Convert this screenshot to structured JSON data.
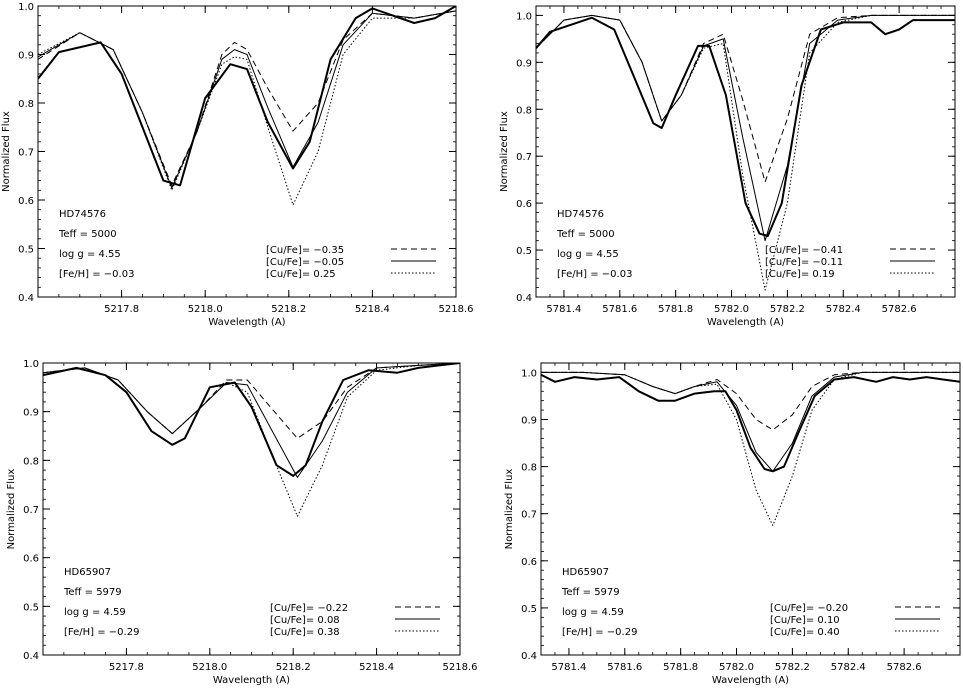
{
  "chart_data": [
    {
      "type": "line",
      "xlabel": "Wavelength (A)",
      "ylabel": "Normalized Flux",
      "xlim": [
        5217.6,
        5218.6
      ],
      "ylim": [
        0.4,
        1.0
      ],
      "xticks": [
        5217.8,
        5218.0,
        5218.2,
        5218.4,
        5218.6
      ],
      "xtick_labels": [
        "5217.8",
        "5218.0",
        "5218.2",
        "5218.4",
        "5218.6"
      ],
      "yticks": [
        0.4,
        0.5,
        0.6,
        0.7,
        0.8,
        0.9,
        1.0
      ],
      "ytick_labels": [
        "0.4",
        "0.5",
        "0.6",
        "0.7",
        "0.8",
        "0.9",
        "1.0"
      ],
      "annotations": [
        "HD74576",
        "Teff = 5000",
        "log g = 4.55",
        "[Fe/H] = −0.03"
      ],
      "legend": [
        "[Cu/Fe]= −0.35",
        "[Cu/Fe]= −0.05",
        "[Cu/Fe]=  0.25"
      ],
      "legend_placement": "bottom-right",
      "series": [
        {
          "style": "dashed",
          "x": [
            5217.6,
            5217.7,
            5217.78,
            5217.85,
            5217.92,
            5217.98,
            5218.04,
            5218.07,
            5218.1,
            5218.15,
            5218.21,
            5218.27,
            5218.33,
            5218.4,
            5218.5,
            5218.6
          ],
          "y": [
            0.89,
            0.945,
            0.91,
            0.78,
            0.63,
            0.74,
            0.9,
            0.925,
            0.91,
            0.83,
            0.742,
            0.8,
            0.93,
            0.985,
            0.975,
            0.99
          ]
        },
        {
          "style": "solid",
          "x": [
            5217.6,
            5217.7,
            5217.78,
            5217.85,
            5217.92,
            5217.98,
            5218.04,
            5218.07,
            5218.1,
            5218.15,
            5218.21,
            5218.27,
            5218.33,
            5218.4,
            5218.5,
            5218.6
          ],
          "y": [
            0.895,
            0.945,
            0.91,
            0.78,
            0.625,
            0.74,
            0.89,
            0.91,
            0.9,
            0.79,
            0.668,
            0.76,
            0.92,
            0.985,
            0.975,
            0.99
          ]
        },
        {
          "style": "dotted",
          "x": [
            5217.6,
            5217.7,
            5217.78,
            5217.85,
            5217.92,
            5217.98,
            5218.04,
            5218.07,
            5218.1,
            5218.15,
            5218.21,
            5218.27,
            5218.33,
            5218.4,
            5218.5,
            5218.6
          ],
          "y": [
            0.9,
            0.945,
            0.91,
            0.78,
            0.62,
            0.74,
            0.88,
            0.895,
            0.89,
            0.75,
            0.59,
            0.7,
            0.9,
            0.975,
            0.975,
            0.99
          ]
        },
        {
          "style": "observed",
          "x": [
            5217.6,
            5217.65,
            5217.75,
            5217.8,
            5217.85,
            5217.9,
            5217.94,
            5218.0,
            5218.06,
            5218.1,
            5218.15,
            5218.21,
            5218.25,
            5218.3,
            5218.36,
            5218.4,
            5218.45,
            5218.5,
            5218.55,
            5218.6
          ],
          "y": [
            0.85,
            0.905,
            0.925,
            0.86,
            0.75,
            0.64,
            0.63,
            0.81,
            0.88,
            0.87,
            0.76,
            0.665,
            0.72,
            0.89,
            0.975,
            0.995,
            0.98,
            0.965,
            0.975,
            1.0
          ]
        }
      ]
    },
    {
      "type": "line",
      "xlabel": "Wavelength (A)",
      "ylabel": "Normalized Flux",
      "xlim": [
        5781.3,
        5782.8
      ],
      "ylim": [
        0.4,
        1.02
      ],
      "xticks": [
        5781.4,
        5781.6,
        5781.8,
        5782.0,
        5782.2,
        5782.4,
        5782.6
      ],
      "xtick_labels": [
        "5781.4",
        "5781.6",
        "5781.8",
        "5782.0",
        "5782.2",
        "5782.4",
        "5782.6"
      ],
      "yticks": [
        0.4,
        0.5,
        0.6,
        0.7,
        0.8,
        0.9,
        1.0
      ],
      "ytick_labels": [
        "0.4",
        "0.5",
        "0.6",
        "0.7",
        "0.8",
        "0.9",
        "1.0"
      ],
      "annotations": [
        "HD74576",
        "Teff = 5000",
        "log g = 4.55",
        "[Fe/H] = −0.03"
      ],
      "legend": [
        "[Cu/Fe]= −0.41",
        "[Cu/Fe]= −0.11",
        "[Cu/Fe]=  0.19"
      ],
      "legend_placement": "bottom-right",
      "series": [
        {
          "style": "dashed",
          "x": [
            5781.3,
            5781.4,
            5781.5,
            5781.6,
            5781.68,
            5781.75,
            5781.82,
            5781.9,
            5781.97,
            5782.04,
            5782.12,
            5782.2,
            5782.28,
            5782.38,
            5782.5,
            5782.8
          ],
          "y": [
            0.93,
            0.99,
            1.0,
            0.99,
            0.9,
            0.775,
            0.83,
            0.94,
            0.96,
            0.82,
            0.645,
            0.78,
            0.96,
            0.995,
            1.0,
            1.0
          ]
        },
        {
          "style": "solid",
          "x": [
            5781.3,
            5781.4,
            5781.5,
            5781.6,
            5781.68,
            5781.75,
            5781.82,
            5781.9,
            5781.97,
            5782.04,
            5782.12,
            5782.2,
            5782.28,
            5782.38,
            5782.5,
            5782.8
          ],
          "y": [
            0.93,
            0.99,
            1.0,
            0.99,
            0.9,
            0.775,
            0.83,
            0.935,
            0.95,
            0.74,
            0.52,
            0.68,
            0.94,
            0.99,
            1.0,
            1.0
          ]
        },
        {
          "style": "dotted",
          "x": [
            5781.3,
            5781.4,
            5781.5,
            5781.6,
            5781.68,
            5781.75,
            5781.82,
            5781.9,
            5781.97,
            5782.04,
            5782.12,
            5782.2,
            5782.28,
            5782.38,
            5782.5,
            5782.8
          ],
          "y": [
            0.93,
            0.99,
            1.0,
            0.99,
            0.9,
            0.775,
            0.83,
            0.93,
            0.94,
            0.66,
            0.415,
            0.6,
            0.92,
            0.985,
            1.0,
            1.0
          ]
        },
        {
          "style": "observed",
          "x": [
            5781.3,
            5781.35,
            5781.45,
            5781.5,
            5781.58,
            5781.65,
            5781.72,
            5781.75,
            5781.8,
            5781.88,
            5781.92,
            5781.98,
            5782.05,
            5782.1,
            5782.13,
            5782.18,
            5782.25,
            5782.32,
            5782.4,
            5782.5,
            5782.55,
            5782.6,
            5782.65,
            5782.7,
            5782.8
          ],
          "y": [
            0.93,
            0.965,
            0.985,
            0.995,
            0.97,
            0.87,
            0.77,
            0.76,
            0.83,
            0.935,
            0.935,
            0.83,
            0.6,
            0.535,
            0.53,
            0.6,
            0.85,
            0.97,
            0.985,
            0.985,
            0.96,
            0.97,
            0.99,
            0.99,
            0.99
          ]
        }
      ]
    },
    {
      "type": "line",
      "xlabel": "Wavelength (A)",
      "ylabel": "Normalized Flux",
      "xlim": [
        5217.6,
        5218.6
      ],
      "ylim": [
        0.4,
        1.0
      ],
      "xticks": [
        5217.8,
        5218.0,
        5218.2,
        5218.4,
        5218.6
      ],
      "xtick_labels": [
        "5217.8",
        "5218.0",
        "5218.2",
        "5218.4",
        "5218.6"
      ],
      "yticks": [
        0.4,
        0.5,
        0.6,
        0.7,
        0.8,
        0.9,
        1.0
      ],
      "ytick_labels": [
        "0.4",
        "0.5",
        "0.6",
        "0.7",
        "0.8",
        "0.9",
        "1.0"
      ],
      "annotations": [
        "HD65907",
        "Teff = 5979",
        "log g = 4.59",
        "[Fe/H] = −0.29"
      ],
      "legend": [
        "[Cu/Fe]= −0.22",
        "[Cu/Fe]=  0.08",
        "[Cu/Fe]=  0.38"
      ],
      "legend_placement": "bottom-right",
      "series": [
        {
          "style": "dashed",
          "x": [
            5217.6,
            5217.7,
            5217.78,
            5217.85,
            5217.91,
            5217.98,
            5218.04,
            5218.09,
            5218.15,
            5218.21,
            5218.27,
            5218.33,
            5218.4,
            5218.5,
            5218.6
          ],
          "y": [
            0.98,
            0.99,
            0.965,
            0.9,
            0.855,
            0.91,
            0.965,
            0.965,
            0.905,
            0.845,
            0.88,
            0.95,
            0.99,
            0.995,
            1.0
          ]
        },
        {
          "style": "solid",
          "x": [
            5217.6,
            5217.7,
            5217.78,
            5217.85,
            5217.91,
            5217.98,
            5218.04,
            5218.09,
            5218.15,
            5218.21,
            5218.27,
            5218.33,
            5218.4,
            5218.5,
            5218.6
          ],
          "y": [
            0.98,
            0.99,
            0.965,
            0.9,
            0.855,
            0.91,
            0.96,
            0.955,
            0.86,
            0.765,
            0.84,
            0.94,
            0.99,
            0.995,
            1.0
          ]
        },
        {
          "style": "dotted",
          "x": [
            5217.6,
            5217.7,
            5217.78,
            5217.85,
            5217.91,
            5217.98,
            5218.04,
            5218.09,
            5218.15,
            5218.21,
            5218.27,
            5218.33,
            5218.4,
            5218.5,
            5218.6
          ],
          "y": [
            0.98,
            0.99,
            0.965,
            0.9,
            0.855,
            0.91,
            0.96,
            0.94,
            0.81,
            0.685,
            0.79,
            0.93,
            0.985,
            0.995,
            1.0
          ]
        },
        {
          "style": "observed",
          "x": [
            5217.6,
            5217.68,
            5217.75,
            5217.8,
            5217.86,
            5217.91,
            5217.94,
            5218.0,
            5218.06,
            5218.1,
            5218.16,
            5218.2,
            5218.23,
            5218.27,
            5218.32,
            5218.38,
            5218.45,
            5218.5,
            5218.55,
            5218.6
          ],
          "y": [
            0.975,
            0.99,
            0.975,
            0.94,
            0.86,
            0.832,
            0.845,
            0.95,
            0.96,
            0.91,
            0.79,
            0.768,
            0.79,
            0.88,
            0.965,
            0.985,
            0.98,
            0.99,
            0.995,
            1.0
          ]
        }
      ]
    },
    {
      "type": "line",
      "xlabel": "Wavelength (A)",
      "ylabel": "Normalized Flux",
      "xlim": [
        5781.3,
        5782.8
      ],
      "ylim": [
        0.4,
        1.02
      ],
      "xticks": [
        5781.4,
        5781.6,
        5781.8,
        5782.0,
        5782.2,
        5782.4,
        5782.6
      ],
      "xtick_labels": [
        "5781.4",
        "5781.6",
        "5781.8",
        "5782.0",
        "5782.2",
        "5782.4",
        "5782.6"
      ],
      "yticks": [
        0.4,
        0.5,
        0.6,
        0.7,
        0.8,
        0.9,
        1.0
      ],
      "ytick_labels": [
        "0.4",
        "0.5",
        "0.6",
        "0.7",
        "0.8",
        "0.9",
        "1.0"
      ],
      "annotations": [
        "HD65907",
        "Teff = 5979",
        "log g = 4.59",
        "[Fe/H] = −0.29"
      ],
      "legend": [
        "[Cu/Fe]= −0.20",
        "[Cu/Fe]=  0.10",
        "[Cu/Fe]=  0.40"
      ],
      "legend_placement": "bottom-right",
      "series": [
        {
          "style": "dashed",
          "x": [
            5781.3,
            5781.45,
            5781.6,
            5781.7,
            5781.78,
            5781.85,
            5781.93,
            5782.0,
            5782.07,
            5782.13,
            5782.2,
            5782.27,
            5782.35,
            5782.45,
            5782.8
          ],
          "y": [
            1.0,
            1.0,
            0.995,
            0.97,
            0.955,
            0.97,
            0.985,
            0.955,
            0.9,
            0.878,
            0.91,
            0.97,
            0.995,
            1.0,
            1.0
          ]
        },
        {
          "style": "solid",
          "x": [
            5781.3,
            5781.45,
            5781.6,
            5781.7,
            5781.78,
            5781.85,
            5781.93,
            5782.0,
            5782.07,
            5782.13,
            5782.2,
            5782.27,
            5782.35,
            5782.45,
            5782.8
          ],
          "y": [
            1.0,
            1.0,
            0.995,
            0.97,
            0.955,
            0.97,
            0.98,
            0.93,
            0.83,
            0.79,
            0.85,
            0.95,
            0.99,
            1.0,
            1.0
          ]
        },
        {
          "style": "dotted",
          "x": [
            5781.3,
            5781.45,
            5781.6,
            5781.7,
            5781.78,
            5781.85,
            5781.93,
            5782.0,
            5782.07,
            5782.13,
            5782.2,
            5782.27,
            5782.35,
            5782.45,
            5782.8
          ],
          "y": [
            1.0,
            1.0,
            0.995,
            0.97,
            0.955,
            0.97,
            0.975,
            0.9,
            0.75,
            0.675,
            0.78,
            0.92,
            0.985,
            1.0,
            1.0
          ]
        },
        {
          "style": "observed",
          "x": [
            5781.3,
            5781.35,
            5781.42,
            5781.5,
            5781.58,
            5781.65,
            5781.72,
            5781.78,
            5781.85,
            5781.92,
            5781.96,
            5782.0,
            5782.05,
            5782.1,
            5782.13,
            5782.17,
            5782.22,
            5782.28,
            5782.35,
            5782.42,
            5782.5,
            5782.56,
            5782.62,
            5782.68,
            5782.74,
            5782.8
          ],
          "y": [
            0.995,
            0.98,
            0.99,
            0.985,
            0.99,
            0.96,
            0.94,
            0.94,
            0.955,
            0.96,
            0.96,
            0.92,
            0.84,
            0.795,
            0.79,
            0.8,
            0.87,
            0.95,
            0.985,
            0.99,
            0.98,
            0.99,
            0.985,
            0.99,
            0.985,
            0.98
          ]
        }
      ]
    }
  ]
}
